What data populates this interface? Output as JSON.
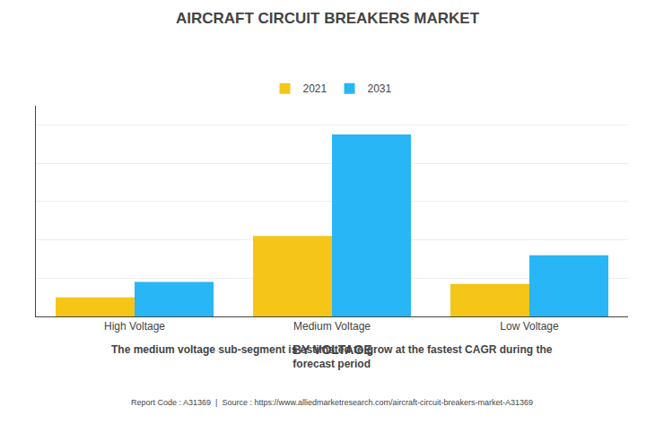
{
  "chart_data": {
    "type": "bar",
    "title": "AIRCRAFT CIRCUIT BREAKERS MARKET",
    "subtitle": "BY VOLTAGE",
    "categories": [
      "High Voltage",
      "Medium Voltage",
      "Low Voltage"
    ],
    "series": [
      {
        "name": "2021",
        "color": "#F5C518",
        "values": [
          1.0,
          4.2,
          1.7
        ]
      },
      {
        "name": "2031",
        "color": "#29B6F6",
        "values": [
          1.8,
          9.5,
          3.2
        ]
      }
    ],
    "ylim": [
      0,
      11
    ],
    "yticks": [
      0,
      2,
      4,
      6,
      8,
      10
    ],
    "grid": true,
    "tick_labels": "x",
    "legend": "top",
    "annotations": [
      "The medium voltage sub-segment is estimated to grow at the fastest CAGR during the\nforecast period",
      "Report Code : A31369  |  Source : https://www.alliedmarketresearch.com/aircraft-circuit-breakers-market-A31369"
    ]
  }
}
